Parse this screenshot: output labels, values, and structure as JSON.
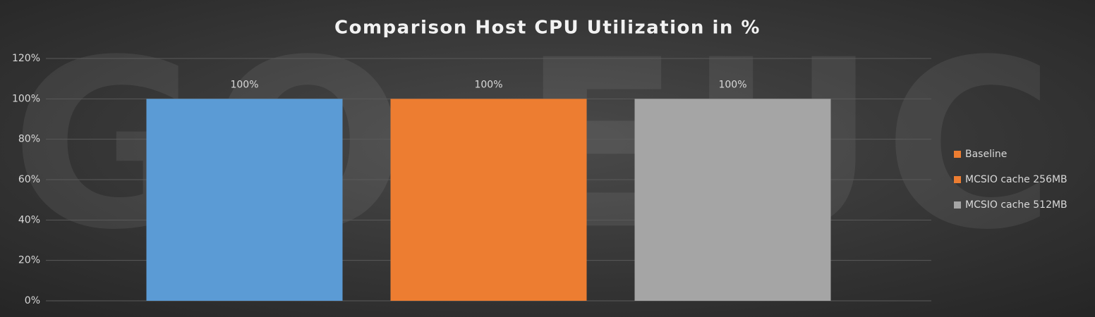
{
  "chart_data": {
    "type": "bar",
    "title": "Comparison Host CPU Utilization in %",
    "watermark": "GO-EUC",
    "categories": [
      null
    ],
    "series": [
      {
        "name": "Baseline",
        "color": "#5b9bd5",
        "legend_color": "#ed7d31",
        "values": [
          100
        ],
        "value_labels": [
          "100%"
        ]
      },
      {
        "name": "MCSIO cache 256MB",
        "color": "#ed7d31",
        "legend_color": "#ed7d31",
        "values": [
          100
        ],
        "value_labels": [
          "100%"
        ]
      },
      {
        "name": "MCSIO cache 512MB",
        "color": "#a5a5a5",
        "legend_color": "#a5a5a5",
        "values": [
          100
        ],
        "value_labels": [
          "100%"
        ]
      }
    ],
    "ylim": [
      0,
      120
    ],
    "yticks": [
      {
        "value": 0,
        "label": "0%"
      },
      {
        "value": 20,
        "label": "20%"
      },
      {
        "value": 40,
        "label": "40%"
      },
      {
        "value": 60,
        "label": "60%"
      },
      {
        "value": 80,
        "label": "80%"
      },
      {
        "value": 100,
        "label": "100%"
      },
      {
        "value": 120,
        "label": "120%"
      }
    ],
    "grid": true,
    "legend": "right"
  }
}
